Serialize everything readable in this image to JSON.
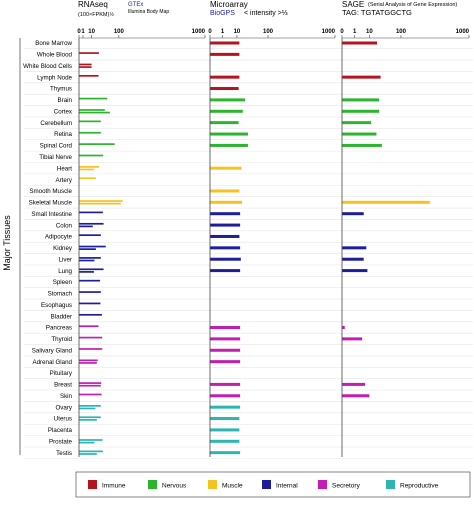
{
  "chart_data": {
    "type": "bar",
    "ylabel": "Major Tissues",
    "tissues": [
      "Bone Marrow",
      "Whole Blood",
      "White Blood Cells",
      "Lymph Node",
      "Thymus",
      "Brain",
      "Cortex",
      "Cerebellum",
      "Retina",
      "Spinal Cord",
      "Tibial Nerve",
      "Heart",
      "Artery",
      "Smooth Muscle",
      "Skeletal Muscle",
      "Small Intestine",
      "Colon",
      "Adipocyte",
      "Kidney",
      "Liver",
      "Lung",
      "Spleen",
      "Stomach",
      "Esophagus",
      "Bladder",
      "Pancreas",
      "Thyroid",
      "Salivary Gland",
      "Adrenal Gland",
      "Pituitary",
      "Breast",
      "Skin",
      "Ovary",
      "Uterus",
      "Placenta",
      "Prostate",
      "Testis"
    ],
    "tissue_groups": [
      "Immune",
      "Immune",
      "Immune",
      "Immune",
      "Immune",
      "Nervous",
      "Nervous",
      "Nervous",
      "Nervous",
      "Nervous",
      "Nervous",
      "Muscle",
      "Muscle",
      "Muscle",
      "Muscle",
      "Internal",
      "Internal",
      "Internal",
      "Internal",
      "Internal",
      "Internal",
      "Internal",
      "Internal",
      "Internal",
      "Internal",
      "Secretory",
      "Secretory",
      "Secretory",
      "Secretory",
      "Secretory",
      "Secretory",
      "Secretory",
      "Reproductive",
      "Reproductive",
      "Reproductive",
      "Reproductive",
      "Reproductive"
    ],
    "panels": [
      {
        "title": "RNAseq",
        "subtitle": "(100×FPKM)½",
        "sources": [
          {
            "text": "GTEx",
            "color": "#1a1ab5"
          },
          {
            "text": "Illumina Body Map",
            "color": "#000000"
          }
        ],
        "xticks": [
          "0",
          "1",
          "10",
          "100",
          "1000"
        ],
        "scale": "power-1/2",
        "xlim": [
          0,
          1000
        ],
        "series": [
          {
            "name": "GTEx",
            "values": [
              null,
              25,
              10,
              24,
              null,
              50,
              42,
              30,
              30,
              80,
              37,
              25,
              18,
              null,
              120,
              36,
              38,
              30,
              45,
              30,
              38,
              28,
              30,
              29,
              33,
              24,
              34,
              34,
              22,
              null,
              31,
              32,
              30,
              30,
              null,
              35,
              36
            ]
          },
          {
            "name": "Illumina Body Map",
            "values": [
              null,
              null,
              10,
              null,
              null,
              null,
              60,
              null,
              null,
              null,
              null,
              14,
              null,
              null,
              110,
              null,
              12,
              null,
              18,
              15,
              14,
              null,
              null,
              null,
              null,
              null,
              null,
              null,
              20,
              null,
              30,
              null,
              17,
              20,
              null,
              15,
              20
            ]
          }
        ]
      },
      {
        "title": "Microarray",
        "sources": [
          {
            "text": "BioGPS",
            "color": "#1a1ab5"
          },
          {
            "text": "< intensity >⅓",
            "color": "#000000"
          }
        ],
        "xticks": [
          "0",
          "1",
          "10",
          "100",
          "1000"
        ],
        "scale": "power-1/3",
        "xlim": [
          0,
          1000
        ],
        "values": [
          13,
          13,
          null,
          13,
          12,
          22,
          18,
          12,
          28,
          28,
          null,
          16,
          null,
          13,
          17,
          14,
          14,
          13,
          14,
          15,
          14,
          null,
          null,
          null,
          null,
          14,
          14,
          14,
          14,
          null,
          14,
          14,
          14,
          13,
          13,
          13,
          14
        ]
      },
      {
        "title": "SAGE",
        "title_note": "(Serial Analysis of Gene Expression)",
        "tag": "TAG: TGTATGGCTG",
        "xticks": [
          "0",
          "1",
          "10",
          "100",
          "1000"
        ],
        "scale": "power-1/3",
        "xlim": [
          0,
          1000
        ],
        "values": [
          21,
          null,
          null,
          28,
          null,
          25,
          25,
          12,
          20,
          31,
          null,
          null,
          null,
          null,
          330,
          5,
          null,
          null,
          7,
          5,
          8,
          null,
          null,
          null,
          null,
          0.01,
          4,
          null,
          null,
          null,
          6,
          10,
          null,
          null,
          null,
          null,
          null
        ]
      }
    ],
    "legend": {
      "position": "bottom",
      "items": [
        {
          "label": "Immune",
          "color": "#b4141e"
        },
        {
          "label": "Nervous",
          "color": "#2db42d"
        },
        {
          "label": "Muscle",
          "color": "#f5c31e"
        },
        {
          "label": "Internal",
          "color": "#1e1e9b"
        },
        {
          "label": "Secretory",
          "color": "#c31eb4"
        },
        {
          "label": "Reproductive",
          "color": "#2db4b4"
        }
      ]
    }
  }
}
